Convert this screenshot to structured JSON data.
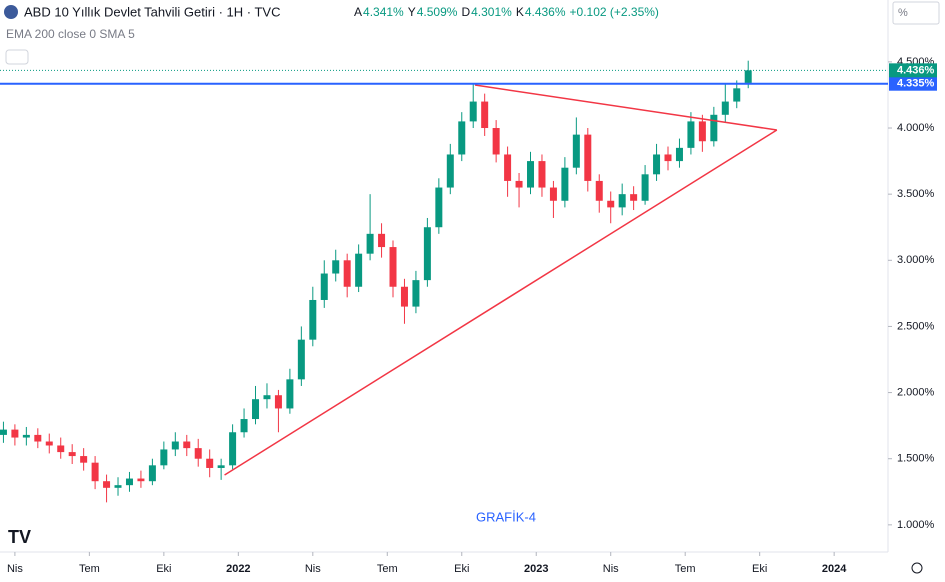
{
  "header": {
    "title": "ABD 10 Yıllık Devlet Tahvili Getiri · 1H · TVC",
    "ohlc": [
      {
        "label": "A",
        "value": "4.341%"
      },
      {
        "label": "Y",
        "value": "4.509%"
      },
      {
        "label": "D",
        "value": "4.301%"
      },
      {
        "label": "K",
        "value": "4.436%"
      }
    ],
    "change": "+0.102 (+2.35%)",
    "indicator": "EMA 200 close 0 SMA 5",
    "scale_button": "%"
  },
  "chart_data": {
    "type": "candlestick",
    "x": [
      -2,
      0,
      2,
      4,
      6,
      8,
      10,
      12,
      14,
      16,
      18,
      20,
      22,
      24,
      26,
      28,
      30,
      32,
      34,
      36,
      38,
      40,
      42,
      44,
      46,
      48,
      50,
      52,
      54,
      56,
      58,
      60,
      62,
      64,
      66,
      68,
      70,
      72,
      74,
      76,
      78,
      80,
      82,
      84,
      86,
      88,
      90,
      92,
      94,
      96,
      98,
      100,
      102,
      104,
      106,
      108,
      110,
      112,
      114,
      116,
      118,
      120,
      122,
      124,
      126,
      128
    ],
    "open": [
      1.68,
      1.72,
      1.66,
      1.68,
      1.63,
      1.6,
      1.55,
      1.52,
      1.47,
      1.33,
      1.28,
      1.3,
      1.35,
      1.33,
      1.45,
      1.57,
      1.63,
      1.58,
      1.5,
      1.43,
      1.45,
      1.7,
      1.8,
      1.95,
      1.98,
      1.88,
      2.1,
      2.4,
      2.7,
      2.9,
      3.0,
      2.8,
      3.05,
      3.2,
      3.1,
      2.8,
      2.65,
      2.85,
      3.25,
      3.55,
      3.8,
      4.05,
      4.2,
      4.0,
      3.8,
      3.6,
      3.55,
      3.75,
      3.55,
      3.45,
      3.7,
      3.95,
      3.6,
      3.45,
      3.4,
      3.5,
      3.45,
      3.65,
      3.8,
      3.75,
      3.85,
      4.05,
      3.9,
      4.1,
      4.2,
      4.341
    ],
    "high": [
      1.78,
      1.76,
      1.74,
      1.73,
      1.69,
      1.66,
      1.61,
      1.58,
      1.52,
      1.38,
      1.36,
      1.4,
      1.41,
      1.5,
      1.63,
      1.7,
      1.68,
      1.65,
      1.57,
      1.5,
      1.76,
      1.88,
      2.05,
      2.07,
      2.02,
      2.18,
      2.5,
      2.8,
      3.0,
      3.08,
      3.05,
      3.12,
      3.5,
      3.28,
      3.15,
      2.86,
      2.92,
      3.32,
      3.62,
      3.88,
      4.12,
      4.33,
      4.26,
      4.06,
      3.86,
      3.66,
      3.82,
      3.8,
      3.6,
      3.78,
      4.08,
      4.0,
      3.65,
      3.52,
      3.58,
      3.56,
      3.72,
      3.88,
      3.86,
      3.92,
      4.12,
      4.1,
      4.16,
      4.33,
      4.36,
      4.509
    ],
    "low": [
      1.62,
      1.6,
      1.6,
      1.58,
      1.54,
      1.5,
      1.46,
      1.41,
      1.27,
      1.17,
      1.22,
      1.25,
      1.28,
      1.3,
      1.42,
      1.52,
      1.52,
      1.44,
      1.36,
      1.34,
      1.42,
      1.66,
      1.76,
      1.88,
      1.7,
      1.84,
      2.05,
      2.35,
      2.64,
      2.84,
      2.72,
      2.76,
      3.0,
      3.02,
      2.72,
      2.52,
      2.6,
      2.8,
      3.2,
      3.5,
      3.75,
      4.0,
      3.94,
      3.74,
      3.48,
      3.4,
      3.5,
      3.48,
      3.32,
      3.4,
      3.65,
      3.52,
      3.36,
      3.28,
      3.34,
      3.38,
      3.42,
      3.6,
      3.68,
      3.7,
      3.8,
      3.82,
      3.86,
      4.04,
      4.15,
      4.301
    ],
    "close": [
      1.72,
      1.66,
      1.68,
      1.63,
      1.6,
      1.55,
      1.52,
      1.47,
      1.33,
      1.28,
      1.3,
      1.35,
      1.33,
      1.45,
      1.57,
      1.63,
      1.58,
      1.5,
      1.43,
      1.45,
      1.7,
      1.8,
      1.95,
      1.98,
      1.88,
      2.1,
      2.4,
      2.7,
      2.9,
      3.0,
      2.8,
      3.05,
      3.2,
      3.1,
      2.8,
      2.65,
      2.85,
      3.25,
      3.55,
      3.8,
      4.05,
      4.2,
      4.0,
      3.8,
      3.6,
      3.55,
      3.75,
      3.55,
      3.45,
      3.7,
      3.95,
      3.6,
      3.45,
      3.4,
      3.5,
      3.45,
      3.65,
      3.8,
      3.75,
      3.85,
      4.05,
      3.9,
      4.1,
      4.2,
      4.3,
      4.436
    ],
    "up_color": "#089981",
    "down_color": "#f23645",
    "xlim": [
      -2.6,
      152.4
    ],
    "xticks": [
      {
        "value": 0,
        "label": "Nis"
      },
      {
        "value": 13,
        "label": "Tem"
      },
      {
        "value": 26,
        "label": "Eki"
      },
      {
        "value": 39,
        "label": "2022"
      },
      {
        "value": 52,
        "label": "Nis"
      },
      {
        "value": 65,
        "label": "Tem"
      },
      {
        "value": 78,
        "label": "Eki"
      },
      {
        "value": 91,
        "label": "2023"
      },
      {
        "value": 104,
        "label": "Nis"
      },
      {
        "value": 117,
        "label": "Tem"
      },
      {
        "value": 130,
        "label": "Eki"
      },
      {
        "value": 143,
        "label": "2024"
      }
    ],
    "ylim": [
      0.825,
      4.552
    ],
    "yticks": [
      {
        "value": 1.0,
        "label": "1.000%"
      },
      {
        "value": 1.5,
        "label": "1.500%"
      },
      {
        "value": 2.0,
        "label": "2.000%"
      },
      {
        "value": 2.5,
        "label": "2.500%"
      },
      {
        "value": 3.0,
        "label": "3.000%"
      },
      {
        "value": 3.5,
        "label": "3.500%"
      },
      {
        "value": 4.0,
        "label": "4.000%"
      },
      {
        "value": 4.5,
        "label": "4.500%"
      }
    ],
    "price_line": {
      "value": 4.335,
      "label": "4.335%",
      "color": "#2962ff"
    },
    "last_price": {
      "value": 4.436,
      "label": "4.436%",
      "color": "#089981"
    },
    "trend_lines": [
      {
        "color": "#f23645",
        "x": [
          80.3,
          133
        ],
        "y": [
          4.325,
          3.985
        ]
      },
      {
        "color": "#f23645",
        "x": [
          36.6,
          133
        ],
        "y": [
          1.377,
          3.985
        ]
      }
    ],
    "annotation": "GRAFİK-4"
  }
}
